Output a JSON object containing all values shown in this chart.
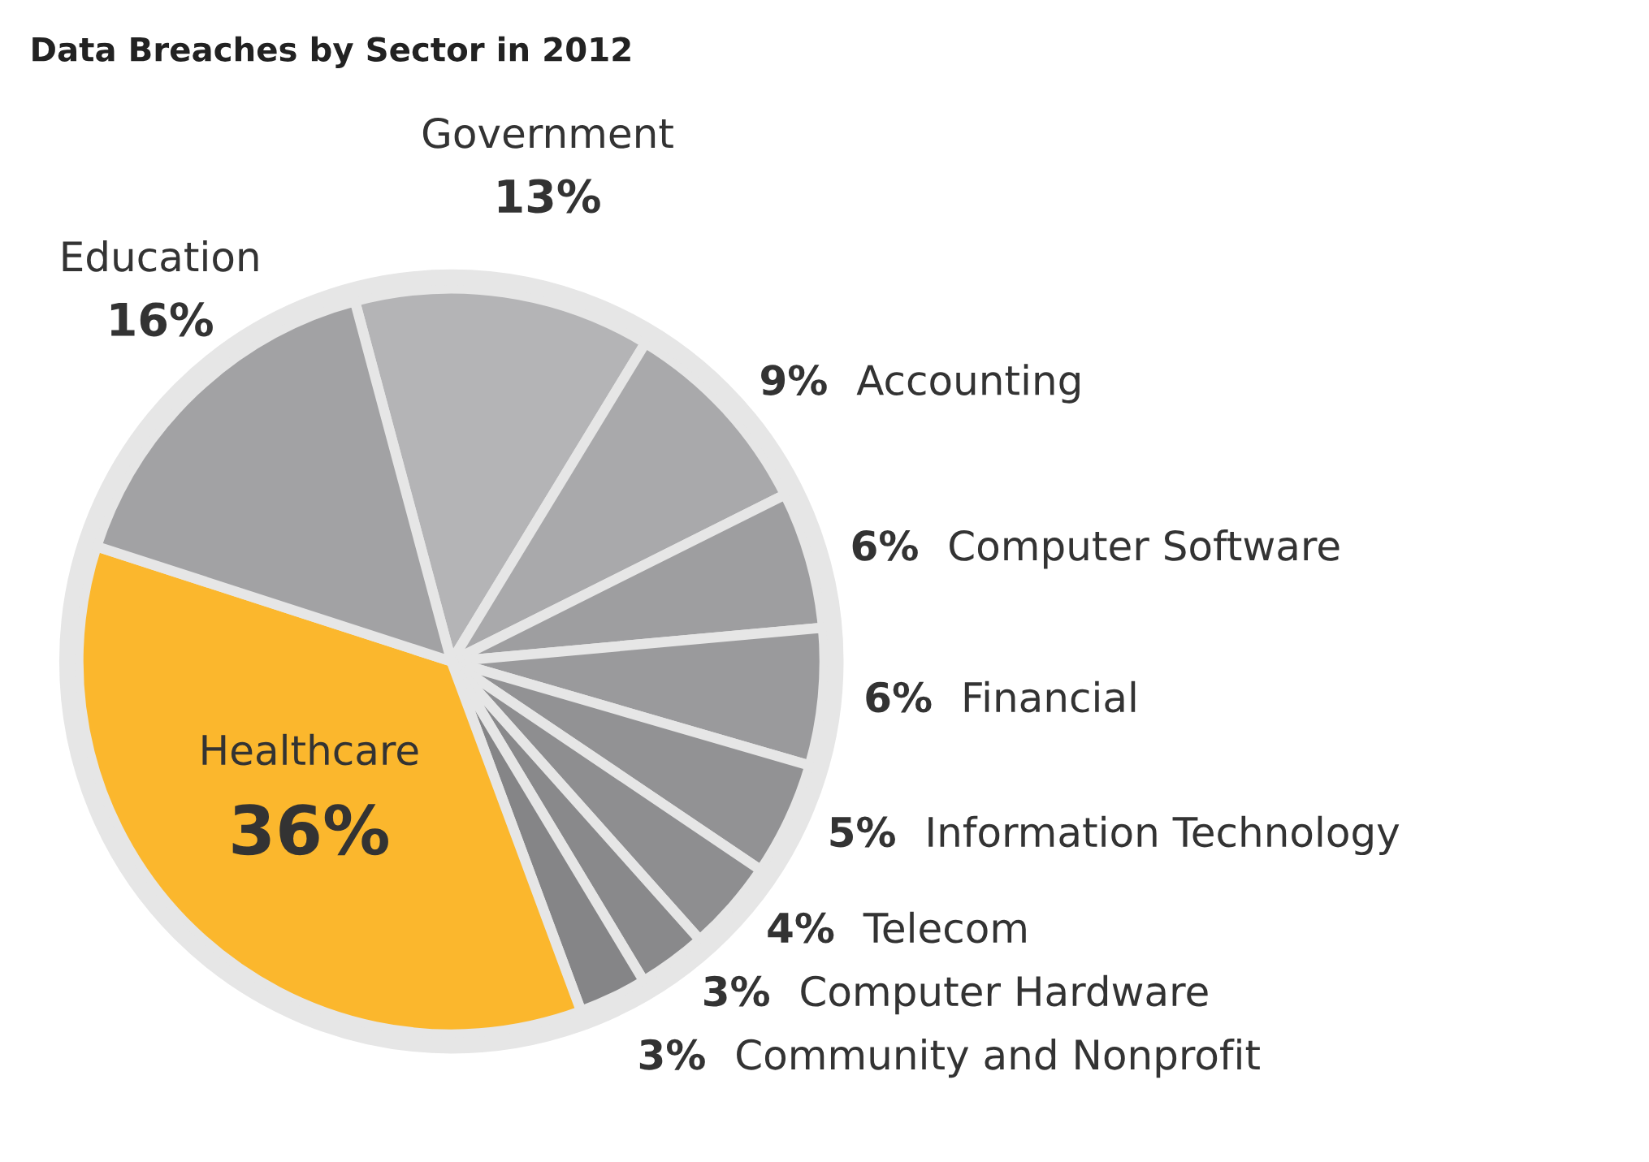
{
  "chart_data": {
    "type": "pie",
    "title": "Data Breaches by Sector in 2012",
    "categories": [
      "Government",
      "Accounting",
      "Computer Software",
      "Financial",
      "Information Technology",
      "Telecom",
      "Computer Hardware",
      "Community and Nonprofit",
      "Healthcare",
      "Education"
    ],
    "values": [
      13,
      9,
      6,
      6,
      5,
      4,
      3,
      3,
      36,
      16
    ],
    "colors": [
      "#b4b4b6",
      "#a9a9ab",
      "#9e9ea0",
      "#9a9a9c",
      "#929294",
      "#8e8e90",
      "#89898b",
      "#858587",
      "#fbb72d",
      "#a2a2a4"
    ],
    "value_labels": [
      "13%",
      "9%",
      "6%",
      "6%",
      "5%",
      "4%",
      "3%",
      "3%",
      "36%",
      "16%"
    ]
  }
}
